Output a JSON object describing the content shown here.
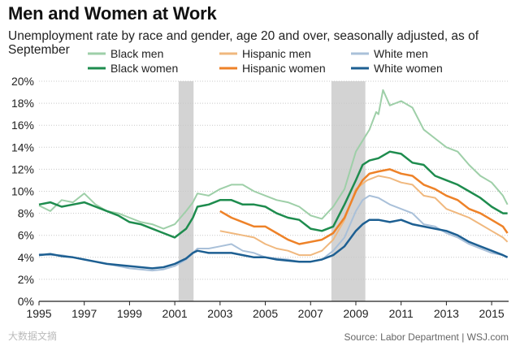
{
  "title": "Men and Women at Work",
  "subtitle": "Unemployment rate by race and gender, age 20 and over, seasonally adjusted, as of September",
  "source": "Source: Labor Department  |  WSJ.com",
  "watermark": "大数据文摘",
  "chart_data": {
    "type": "line",
    "title": "Men and Women at Work",
    "xlabel": "",
    "ylabel": "",
    "xlim": [
      1995,
      2015.75
    ],
    "ylim": [
      0,
      20
    ],
    "x_ticks": [
      1995,
      1997,
      1999,
      2001,
      2003,
      2005,
      2007,
      2009,
      2011,
      2013,
      2015
    ],
    "x_tick_labels": [
      "1995",
      "1997",
      "1999",
      "2001",
      "2003",
      "2005",
      "2007",
      "2009",
      "2011",
      "2013",
      "2015"
    ],
    "y_ticks": [
      0,
      2,
      4,
      6,
      8,
      10,
      12,
      14,
      16,
      18,
      20
    ],
    "y_tick_labels": [
      "0%",
      "2%",
      "4%",
      "6%",
      "8%",
      "10%",
      "12%",
      "14%",
      "16%",
      "18%",
      "20%"
    ],
    "grid": true,
    "legend_position": "top",
    "recessions": [
      {
        "start": 2001.17,
        "end": 2001.83
      },
      {
        "start": 2007.92,
        "end": 2009.42
      }
    ],
    "series": [
      {
        "name": "Black men",
        "color": "#9ecfa8",
        "width": 2,
        "x": [
          1995,
          1995.5,
          1996,
          1996.5,
          1997,
          1997.5,
          1998,
          1998.5,
          1999,
          1999.5,
          2000,
          2000.5,
          2001,
          2001.5,
          2001.8,
          2002,
          2002.5,
          2003,
          2003.5,
          2004,
          2004.5,
          2005,
          2005.5,
          2006,
          2006.5,
          2007,
          2007.5,
          2008,
          2008.5,
          2009,
          2009.3,
          2009.6,
          2009.9,
          2010,
          2010.2,
          2010.5,
          2011,
          2011.5,
          2012,
          2012.5,
          2013,
          2013.5,
          2014,
          2014.5,
          2015,
          2015.5,
          2015.7
        ],
        "y": [
          8.7,
          8.2,
          9.2,
          9.0,
          9.8,
          8.8,
          8.2,
          8.0,
          7.6,
          7.2,
          7.0,
          6.6,
          7.0,
          8.2,
          9.0,
          9.8,
          9.6,
          10.2,
          10.6,
          10.6,
          10.0,
          9.6,
          9.2,
          9.0,
          8.6,
          7.8,
          7.5,
          8.6,
          10.2,
          13.6,
          14.6,
          15.6,
          17.2,
          17.0,
          19.2,
          17.8,
          18.2,
          17.6,
          15.6,
          14.8,
          14.0,
          13.6,
          12.4,
          11.4,
          10.8,
          9.6,
          8.8
        ]
      },
      {
        "name": "Black women",
        "color": "#1e8c4e",
        "width": 2.5,
        "x": [
          1995,
          1995.5,
          1996,
          1996.5,
          1997,
          1997.5,
          1998,
          1998.5,
          1999,
          1999.5,
          2000,
          2000.5,
          2001,
          2001.5,
          2001.8,
          2002,
          2002.5,
          2003,
          2003.5,
          2004,
          2004.5,
          2005,
          2005.5,
          2006,
          2006.5,
          2007,
          2007.5,
          2008,
          2008.5,
          2009,
          2009.3,
          2009.6,
          2010,
          2010.5,
          2011,
          2011.5,
          2012,
          2012.5,
          2013,
          2013.5,
          2014,
          2014.5,
          2015,
          2015.5,
          2015.7
        ],
        "y": [
          8.8,
          9.0,
          8.6,
          8.8,
          9.0,
          8.6,
          8.2,
          7.8,
          7.2,
          7.0,
          6.6,
          6.2,
          5.8,
          6.6,
          7.6,
          8.6,
          8.8,
          9.2,
          9.2,
          8.8,
          8.8,
          8.6,
          8.0,
          7.6,
          7.4,
          6.6,
          6.4,
          6.8,
          8.8,
          11.0,
          12.4,
          12.8,
          13.0,
          13.6,
          13.4,
          12.6,
          12.4,
          11.4,
          11.0,
          10.6,
          10.0,
          9.4,
          8.6,
          8.0,
          8.0
        ]
      },
      {
        "name": "Hispanic men",
        "color": "#f0b87e",
        "width": 2,
        "x": [
          2003,
          2003.5,
          2004,
          2004.5,
          2005,
          2005.5,
          2006,
          2006.5,
          2007,
          2007.5,
          2008,
          2008.5,
          2009,
          2009.5,
          2010,
          2010.5,
          2011,
          2011.5,
          2012,
          2012.5,
          2013,
          2013.5,
          2014,
          2014.5,
          2015,
          2015.5,
          2015.7
        ],
        "y": [
          6.4,
          6.2,
          6.0,
          5.8,
          5.2,
          4.8,
          4.6,
          4.2,
          4.2,
          4.6,
          5.6,
          7.4,
          10.2,
          11.0,
          11.4,
          11.2,
          10.8,
          10.6,
          9.6,
          9.4,
          8.4,
          8.0,
          7.6,
          7.0,
          6.4,
          5.8,
          5.4
        ]
      },
      {
        "name": "Hispanic women",
        "color": "#ee8228",
        "width": 2.5,
        "x": [
          2003,
          2003.5,
          2004,
          2004.5,
          2005,
          2005.5,
          2006,
          2006.5,
          2007,
          2007.5,
          2008,
          2008.5,
          2009,
          2009.3,
          2009.6,
          2010,
          2010.5,
          2011,
          2011.5,
          2012,
          2012.5,
          2013,
          2013.5,
          2014,
          2014.5,
          2015,
          2015.5,
          2015.7
        ],
        "y": [
          8.2,
          7.6,
          7.2,
          6.8,
          6.8,
          6.2,
          5.6,
          5.2,
          5.4,
          5.6,
          6.2,
          7.6,
          10.0,
          11.0,
          11.6,
          11.8,
          12.0,
          11.6,
          11.4,
          10.6,
          10.2,
          9.6,
          9.2,
          8.4,
          8.0,
          7.4,
          6.8,
          6.2
        ]
      },
      {
        "name": "White men",
        "color": "#a9c0d9",
        "width": 2,
        "x": [
          1995,
          1995.5,
          1996,
          1996.5,
          1997,
          1997.5,
          1998,
          1998.5,
          1999,
          1999.5,
          2000,
          2000.5,
          2001,
          2001.5,
          2001.8,
          2002,
          2002.5,
          2003,
          2003.5,
          2004,
          2004.5,
          2005,
          2005.5,
          2006,
          2006.5,
          2007,
          2007.5,
          2008,
          2008.5,
          2009,
          2009.3,
          2009.6,
          2010,
          2010.5,
          2011,
          2011.5,
          2012,
          2012.5,
          2013,
          2013.5,
          2014,
          2014.5,
          2015,
          2015.5,
          2015.7
        ],
        "y": [
          4.3,
          4.2,
          4.2,
          4.0,
          3.8,
          3.6,
          3.4,
          3.2,
          3.0,
          2.9,
          2.8,
          2.9,
          3.2,
          3.8,
          4.4,
          4.8,
          4.8,
          5.0,
          5.2,
          4.6,
          4.4,
          4.0,
          3.9,
          3.8,
          3.6,
          3.6,
          3.8,
          4.6,
          5.8,
          8.2,
          9.2,
          9.6,
          9.4,
          8.8,
          8.4,
          8.0,
          7.0,
          6.8,
          6.2,
          5.8,
          5.2,
          4.8,
          4.4,
          4.2,
          4.0
        ]
      },
      {
        "name": "White women",
        "color": "#1d5f92",
        "width": 2.5,
        "x": [
          1995,
          1995.5,
          1996,
          1996.5,
          1997,
          1997.5,
          1998,
          1998.5,
          1999,
          1999.5,
          2000,
          2000.5,
          2001,
          2001.5,
          2001.8,
          2002,
          2002.5,
          2003,
          2003.5,
          2004,
          2004.5,
          2005,
          2005.5,
          2006,
          2006.5,
          2007,
          2007.5,
          2008,
          2008.5,
          2009,
          2009.3,
          2009.6,
          2010,
          2010.5,
          2011,
          2011.5,
          2012,
          2012.5,
          2013,
          2013.5,
          2014,
          2014.5,
          2015,
          2015.5,
          2015.7
        ],
        "y": [
          4.2,
          4.3,
          4.1,
          4.0,
          3.8,
          3.6,
          3.4,
          3.3,
          3.2,
          3.1,
          3.0,
          3.1,
          3.4,
          3.9,
          4.4,
          4.6,
          4.4,
          4.4,
          4.4,
          4.2,
          4.0,
          4.0,
          3.8,
          3.7,
          3.6,
          3.6,
          3.8,
          4.2,
          5.0,
          6.4,
          7.0,
          7.4,
          7.4,
          7.2,
          7.4,
          7.0,
          6.8,
          6.6,
          6.4,
          6.0,
          5.4,
          5.0,
          4.6,
          4.2,
          4.0
        ]
      }
    ]
  }
}
